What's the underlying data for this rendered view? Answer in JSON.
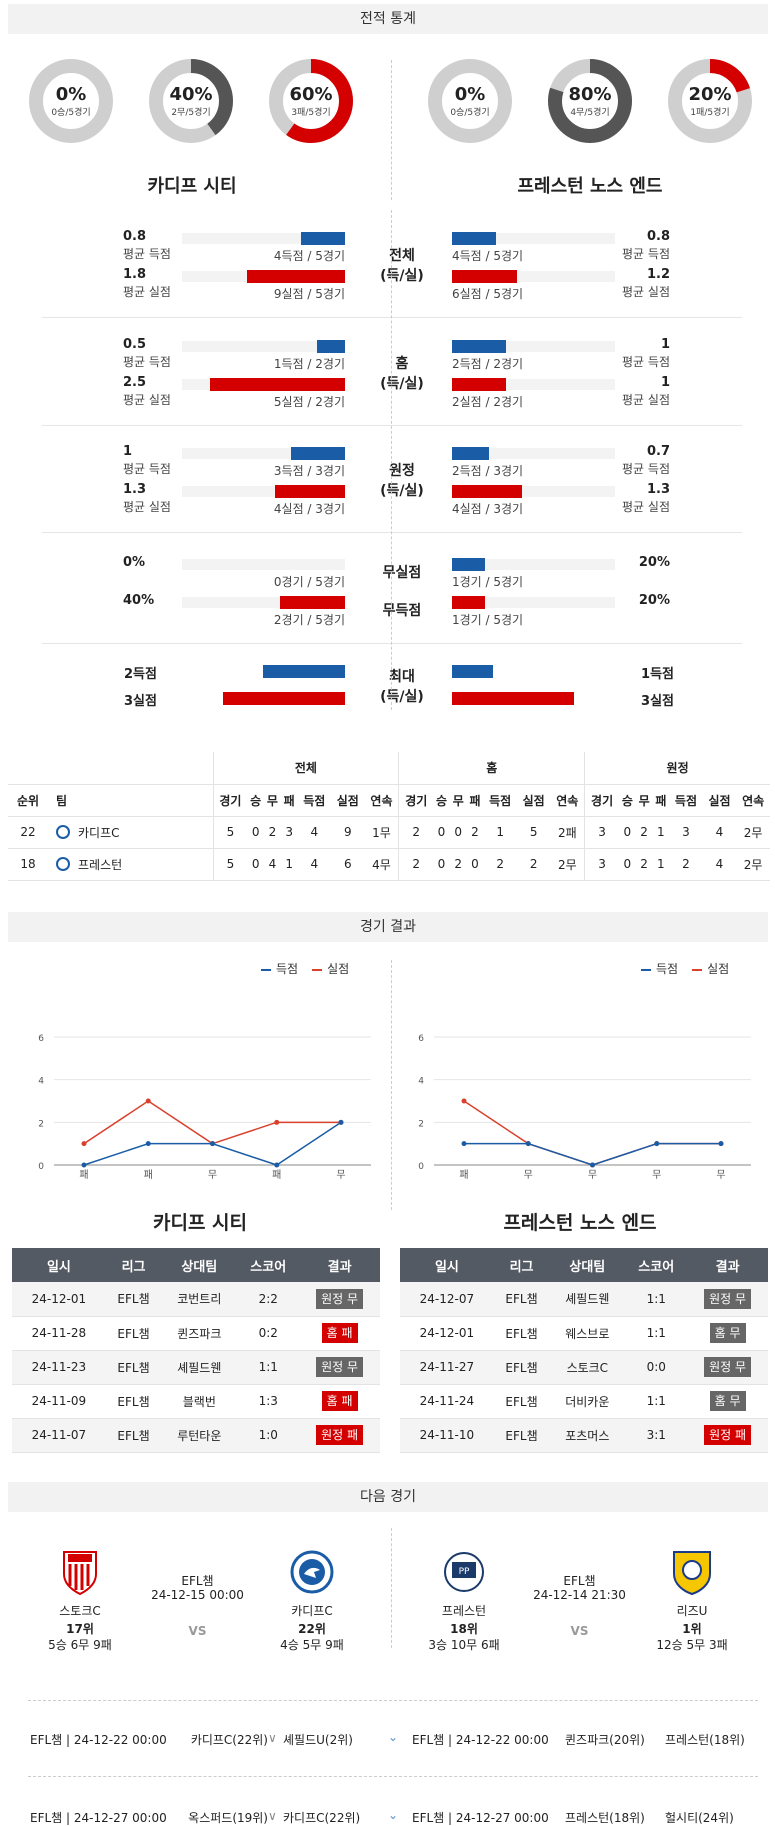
{
  "sections": {
    "stats": "전적 통계",
    "results": "경기 결과",
    "next": "다음 경기"
  },
  "colors": {
    "blue": "#1a5da6",
    "red": "#d40000",
    "gray": "#cfcfcf",
    "dark": "#555555"
  },
  "home": {
    "name": "카디프 시티",
    "short": "카디프C"
  },
  "away": {
    "name": "프레스턴 노스 엔드",
    "short": "프레스턴"
  },
  "donuts_home": [
    {
      "pct": "0%",
      "sub": "0승/5경기",
      "value": 0,
      "color": "#1a5da6"
    },
    {
      "pct": "40%",
      "sub": "2무/5경기",
      "value": 40,
      "color": "#555555"
    },
    {
      "pct": "60%",
      "sub": "3패/5경기",
      "value": 60,
      "color": "#d40000"
    }
  ],
  "donuts_away": [
    {
      "pct": "0%",
      "sub": "0승/5경기",
      "value": 0,
      "color": "#1a5da6"
    },
    {
      "pct": "80%",
      "sub": "4무/5경기",
      "value": 80,
      "color": "#555555"
    },
    {
      "pct": "20%",
      "sub": "1패/5경기",
      "value": 20,
      "color": "#d40000"
    }
  ],
  "stat_blocks": [
    {
      "mid1": "전체",
      "mid2": "(득/실)",
      "home": [
        {
          "v": "0.8",
          "l": "평균 득점",
          "bar": "4득점 / 5경기",
          "frac": 0.27
        },
        {
          "v": "1.8",
          "l": "평균 실점",
          "bar": "9실점 / 5경기",
          "frac": 0.6
        }
      ],
      "away": [
        {
          "v": "0.8",
          "l": "평균 득점",
          "bar": "4득점 / 5경기",
          "frac": 0.27
        },
        {
          "v": "1.2",
          "l": "평균 실점",
          "bar": "6실점 / 5경기",
          "frac": 0.4
        }
      ]
    },
    {
      "mid1": "홈",
      "mid2": "(득/실)",
      "home": [
        {
          "v": "0.5",
          "l": "평균 득점",
          "bar": "1득점 / 2경기",
          "frac": 0.17
        },
        {
          "v": "2.5",
          "l": "평균 실점",
          "bar": "5실점 / 2경기",
          "frac": 0.83
        }
      ],
      "away": [
        {
          "v": "1",
          "l": "평균 득점",
          "bar": "2득점 / 2경기",
          "frac": 0.33
        },
        {
          "v": "1",
          "l": "평균 실점",
          "bar": "2실점 / 2경기",
          "frac": 0.33
        }
      ]
    },
    {
      "mid1": "원정",
      "mid2": "(득/실)",
      "home": [
        {
          "v": "1",
          "l": "평균 득점",
          "bar": "3득점 / 3경기",
          "frac": 0.33
        },
        {
          "v": "1.3",
          "l": "평균 실점",
          "bar": "4실점 / 3경기",
          "frac": 0.43
        }
      ],
      "away": [
        {
          "v": "0.7",
          "l": "평균 득점",
          "bar": "2득점 / 3경기",
          "frac": 0.23
        },
        {
          "v": "1.3",
          "l": "평균 실점",
          "bar": "4실점 / 3경기",
          "frac": 0.43
        }
      ]
    }
  ],
  "zero_block": {
    "rows": [
      {
        "mid": "무실점",
        "hv": "0%",
        "hbar": "0경기 / 5경기",
        "hfrac": 0,
        "av": "20%",
        "abar": "1경기 / 5경기",
        "afrac": 0.2
      },
      {
        "mid": "무득점",
        "hv": "40%",
        "hbar": "2경기 / 5경기",
        "hfrac": 0.4,
        "av": "20%",
        "abar": "1경기 / 5경기",
        "afrac": 0.2
      }
    ]
  },
  "max_block": {
    "mid1": "최대",
    "mid2": "(득/실)",
    "hs": "2득점",
    "hc": "3실점",
    "as": "1득점",
    "ac": "3실점",
    "hsf": 0.5,
    "hcf": 0.75,
    "asf": 0.25,
    "acf": 0.75
  },
  "standings": {
    "groups": [
      "전체",
      "홈",
      "원정"
    ],
    "cols": [
      "순위",
      "팀",
      "경기",
      "승",
      "무",
      "패",
      "득점",
      "실점",
      "연속"
    ],
    "rows": [
      {
        "rank": "22",
        "team": "카디프C",
        "vals": [
          "5",
          "0",
          "2",
          "3",
          "4",
          "9",
          "1무",
          "2",
          "0",
          "0",
          "2",
          "1",
          "5",
          "2패",
          "3",
          "0",
          "2",
          "1",
          "3",
          "4",
          "2무"
        ]
      },
      {
        "rank": "18",
        "team": "프레스턴",
        "vals": [
          "5",
          "0",
          "4",
          "1",
          "4",
          "6",
          "4무",
          "2",
          "0",
          "2",
          "0",
          "2",
          "2",
          "2무",
          "3",
          "0",
          "2",
          "1",
          "2",
          "4",
          "2무"
        ]
      }
    ]
  },
  "chart_data": [
    {
      "type": "line",
      "categories": [
        "패",
        "패",
        "무",
        "패",
        "무"
      ],
      "ylim": [
        0,
        6
      ],
      "yticks": [
        0,
        2,
        4,
        6
      ],
      "series": [
        {
          "name": "득점",
          "values": [
            0,
            1,
            1,
            0,
            2
          ],
          "color": "#1a5da6"
        },
        {
          "name": "실점",
          "values": [
            1,
            3,
            1,
            2,
            2
          ],
          "color": "#d9412b"
        }
      ]
    },
    {
      "type": "line",
      "categories": [
        "패",
        "무",
        "무",
        "무",
        "무"
      ],
      "ylim": [
        0,
        6
      ],
      "yticks": [
        0,
        2,
        4,
        6
      ],
      "series": [
        {
          "name": "득점",
          "values": [
            1,
            1,
            0,
            1,
            1
          ],
          "color": "#1a5da6"
        },
        {
          "name": "실점",
          "values": [
            3,
            1,
            0,
            1,
            1
          ],
          "color": "#d9412b"
        }
      ]
    }
  ],
  "results_headers": [
    "일시",
    "리그",
    "상대팀",
    "스코어",
    "결과"
  ],
  "results_home": [
    {
      "date": "24-12-01",
      "league": "EFL챔",
      "opp": "코번트리",
      "score": "2:2",
      "res": "원정 무",
      "c": "gray"
    },
    {
      "date": "24-11-28",
      "league": "EFL챔",
      "opp": "퀸즈파크",
      "score": "0:2",
      "res": "홈 패",
      "c": "red"
    },
    {
      "date": "24-11-23",
      "league": "EFL챔",
      "opp": "셰필드웬",
      "score": "1:1",
      "res": "원정 무",
      "c": "gray"
    },
    {
      "date": "24-11-09",
      "league": "EFL챔",
      "opp": "블랙번",
      "score": "1:3",
      "res": "홈 패",
      "c": "red"
    },
    {
      "date": "24-11-07",
      "league": "EFL챔",
      "opp": "루턴타운",
      "score": "1:0",
      "res": "원정 패",
      "c": "red"
    }
  ],
  "results_away": [
    {
      "date": "24-12-07",
      "league": "EFL챔",
      "opp": "셰필드웬",
      "score": "1:1",
      "res": "원정 무",
      "c": "gray"
    },
    {
      "date": "24-12-01",
      "league": "EFL챔",
      "opp": "웨스브로",
      "score": "1:1",
      "res": "홈 무",
      "c": "gray"
    },
    {
      "date": "24-11-27",
      "league": "EFL챔",
      "opp": "스토크C",
      "score": "0:0",
      "res": "원정 무",
      "c": "gray"
    },
    {
      "date": "24-11-24",
      "league": "EFL챔",
      "opp": "더비카운",
      "score": "1:1",
      "res": "홈 무",
      "c": "gray"
    },
    {
      "date": "24-11-10",
      "league": "EFL챔",
      "opp": "포츠머스",
      "score": "3:1",
      "res": "원정 패",
      "c": "red"
    }
  ],
  "next_home": {
    "league": "EFL챔",
    "datetime": "24-12-15 00:00",
    "vs": "VS",
    "left": {
      "name": "스토크C",
      "rank": "17위",
      "record": "5승 6무 9패"
    },
    "right": {
      "name": "카디프C",
      "rank": "22위",
      "record": "4승 5무 9패"
    }
  },
  "next_away": {
    "league": "EFL챔",
    "datetime": "24-12-14 21:30",
    "vs": "VS",
    "left": {
      "name": "프레스턴",
      "rank": "18위",
      "record": "3승 10무 6패"
    },
    "right": {
      "name": "리즈U",
      "rank": "1위",
      "record": "12승 5무 3패"
    }
  },
  "upcoming": [
    {
      "l": "EFL챔 | 24-12-22 00:00",
      "a": "카디프C(22위)",
      "b": "셰필드U(2위)",
      "r": "EFL챔 | 24-12-22 00:00",
      "c": "퀸즈파크(20위)",
      "d": "프레스턴(18위)"
    },
    {
      "l": "EFL챔 | 24-12-27 00:00",
      "a": "옥스퍼드(19위)",
      "b": "카디프C(22위)",
      "r": "EFL챔 | 24-12-27 00:00",
      "c": "프레스턴(18위)",
      "d": "헐시티(24위)"
    }
  ]
}
